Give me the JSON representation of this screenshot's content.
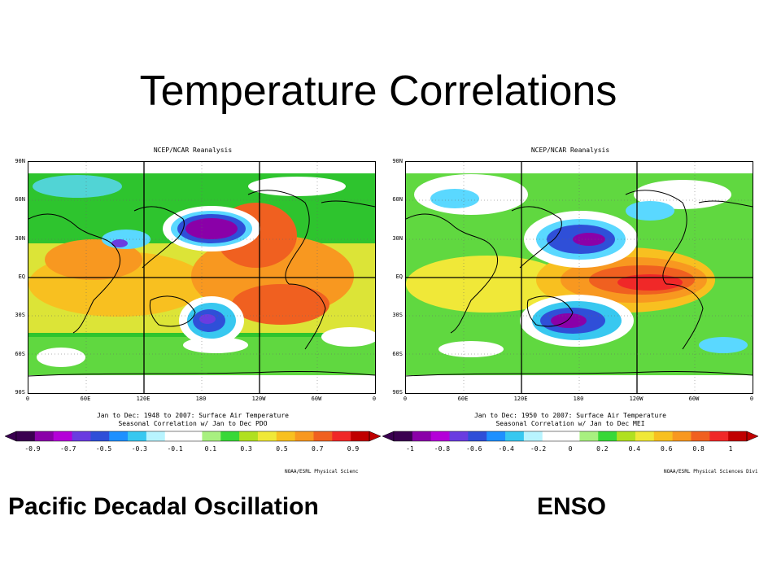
{
  "slide": {
    "title": "Temperature Correlations",
    "left_label": "Pacific Decadal Oscillation",
    "right_label": "ENSO"
  },
  "lat_labels": [
    "90N",
    "60N",
    "30N",
    "EQ",
    "30S",
    "60S",
    "90S"
  ],
  "lon_labels": [
    "0",
    "60E",
    "120E",
    "180",
    "120W",
    "60W",
    "0"
  ],
  "panels": [
    {
      "source": "NCEP/NCAR Reanalysis",
      "caption_line1": "Jan to Dec: 1948 to 2007: Surface Air Temperature",
      "caption_line2": "Seasonal Correlation w/ Jan to Dec PDO",
      "colorbar_labels": [
        "-0.9",
        "-0.7",
        "-0.5",
        "-0.3",
        "-0.1",
        "0.1",
        "0.3",
        "0.5",
        "0.7",
        "0.9"
      ],
      "credit": "NOAA/ESRL Physical Scienc"
    },
    {
      "source": "NCEP/NCAR Reanalysis",
      "caption_line1": "Jan to Dec: 1950 to 2007: Surface Air Temperature",
      "caption_line2": "Seasonal Correlation w/ Jan to Dec MEI",
      "colorbar_labels": [
        "-1",
        "-0.8",
        "-0.6",
        "-0.4",
        "-0.2",
        "0",
        "0.2",
        "0.4",
        "0.6",
        "0.8",
        "1"
      ],
      "credit": "NOAA/ESRL Physical Sciences Divi"
    }
  ],
  "colorbar_colors": [
    "#3a0050",
    "#8a00a8",
    "#b400d8",
    "#6a3ce0",
    "#2f4fd8",
    "#1e90ff",
    "#38c8f0",
    "#b8f4ff",
    "#ffffff",
    "#ffffff",
    "#a8f080",
    "#38d838",
    "#b0e020",
    "#f0e838",
    "#f8c020",
    "#f89820",
    "#f06020",
    "#f02828",
    "#c00000"
  ]
}
